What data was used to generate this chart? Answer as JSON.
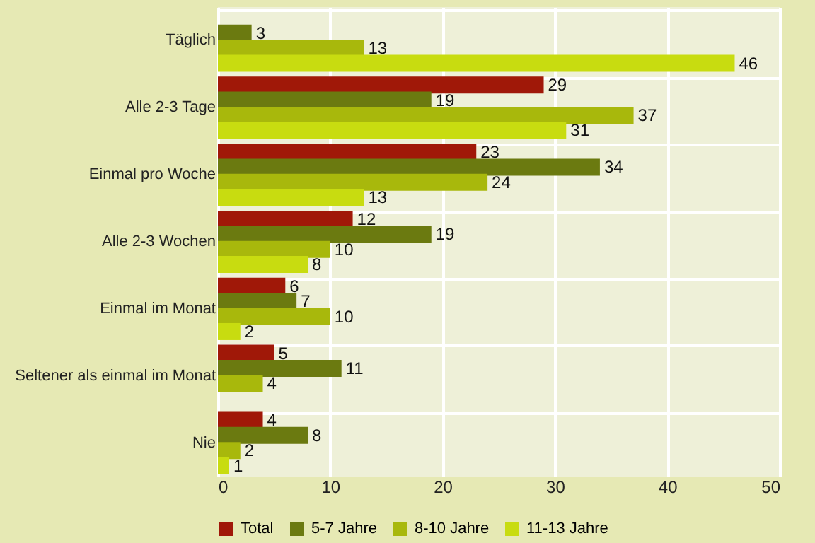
{
  "chart_data": {
    "type": "bar",
    "orientation": "horizontal",
    "categories": [
      "Täglich",
      "Alle 2-3 Tage",
      "Einmal pro Woche",
      "Alle 2-3 Wochen",
      "Einmal im Monat",
      "Seltener als einmal im Monat",
      "Nie"
    ],
    "series": [
      {
        "name": "Total",
        "color": "#a01808",
        "values": [
          null,
          29,
          23,
          12,
          6,
          5,
          4
        ]
      },
      {
        "name": "5-7 Jahre",
        "color": "#6b7a10",
        "values": [
          3,
          19,
          34,
          19,
          7,
          11,
          8
        ]
      },
      {
        "name": "8-10 Jahre",
        "color": "#a8b80c",
        "values": [
          13,
          37,
          24,
          10,
          10,
          4,
          2
        ]
      },
      {
        "name": "11-13 Jahre",
        "color": "#c8dc10",
        "values": [
          46,
          31,
          13,
          8,
          2,
          null,
          1
        ]
      }
    ],
    "xlim": [
      0,
      50
    ],
    "xticks": [
      0,
      10,
      20,
      30,
      40,
      50
    ],
    "grid": "x",
    "data_labels": true,
    "legend": "bottom"
  }
}
